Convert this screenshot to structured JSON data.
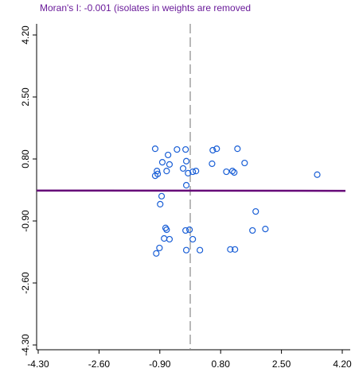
{
  "chart_data": {
    "type": "scatter",
    "title": "Moran's I: -0.001 (isolates in weights are removed",
    "title_color": "#6a1b9a",
    "point_color": "#1a5fd6",
    "x": [
      -1.03,
      -0.67,
      -0.42,
      -0.18,
      0.58,
      0.69,
      1.27,
      -0.83,
      -0.63,
      -0.16,
      0.56,
      1.47,
      -0.98,
      -0.71,
      -0.25,
      -0.11,
      0.02,
      0.11,
      0.96,
      1.13,
      1.18,
      -1.03,
      -0.96,
      -0.16,
      -0.85,
      -0.89,
      1.78,
      -0.74,
      -0.71,
      -0.18,
      -0.07,
      1.69,
      2.05,
      -0.78,
      -0.63,
      0.02,
      -0.91,
      -1.0,
      -0.16,
      0.22,
      1.07,
      1.2,
      3.5
    ],
    "y": [
      1.08,
      0.91,
      1.06,
      1.06,
      1.04,
      1.08,
      1.08,
      0.71,
      0.65,
      0.74,
      0.67,
      0.69,
      0.47,
      0.47,
      0.54,
      0.41,
      0.45,
      0.47,
      0.45,
      0.47,
      0.43,
      0.34,
      0.39,
      0.08,
      -0.22,
      -0.44,
      -0.64,
      -1.09,
      -1.14,
      -1.16,
      -1.14,
      -1.16,
      -1.12,
      -1.38,
      -1.4,
      -1.4,
      -1.64,
      -1.79,
      -1.7,
      -1.7,
      -1.68,
      -1.68,
      0.37
    ],
    "xlim": [
      -4.3,
      4.2
    ],
    "ylim": [
      -4.3,
      4.2
    ],
    "xticks": [
      {
        "value": -4.3,
        "label": "-4.30"
      },
      {
        "value": -2.6,
        "label": "-2.60"
      },
      {
        "value": -0.9,
        "label": "-0.90"
      },
      {
        "value": 0.8,
        "label": "0.80"
      },
      {
        "value": 2.5,
        "label": "2.50"
      },
      {
        "value": 4.2,
        "label": "4.20"
      }
    ],
    "yticks": [
      {
        "value": -4.3,
        "label": "-4.30"
      },
      {
        "value": -2.6,
        "label": "-2.60"
      },
      {
        "value": -0.9,
        "label": "-0.90"
      },
      {
        "value": 0.8,
        "label": "0.80"
      },
      {
        "value": 2.5,
        "label": "2.50"
      },
      {
        "value": 4.2,
        "label": "4.20"
      }
    ],
    "fit_line": {
      "intercept": -0.07,
      "slope": -0.001,
      "color": "#660a78"
    },
    "vline": {
      "value": -0.05,
      "color": "#888888"
    }
  }
}
